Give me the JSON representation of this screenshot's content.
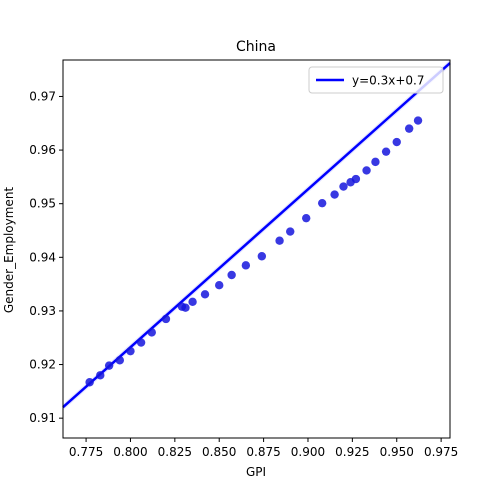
{
  "chart_data": {
    "type": "scatter",
    "title": "China",
    "xlabel": "GPI",
    "ylabel": "Gender_Employment",
    "xlim": [
      0.762,
      0.98
    ],
    "ylim": [
      0.9063,
      0.9768
    ],
    "xticks": [
      0.775,
      0.8,
      0.825,
      0.85,
      0.875,
      0.9,
      0.925,
      0.95,
      0.975
    ],
    "xtick_labels": [
      "0.775",
      "0.800",
      "0.825",
      "0.850",
      "0.875",
      "0.900",
      "0.925",
      "0.950",
      "0.975"
    ],
    "yticks": [
      0.91,
      0.92,
      0.93,
      0.94,
      0.95,
      0.96,
      0.97
    ],
    "ytick_labels": [
      "0.91",
      "0.92",
      "0.93",
      "0.94",
      "0.95",
      "0.96",
      "0.97"
    ],
    "grid": false,
    "legend": {
      "position": "upper right",
      "entries": [
        {
          "label": "y=0.3x+0.7",
          "color": "#0000ff",
          "kind": "line"
        }
      ]
    },
    "colors": {
      "points": "#1515dd",
      "line": "#0000ff",
      "band": "#9999ff"
    },
    "fit_line": {
      "slope": 0.29448,
      "intercept": 0.687648,
      "x_range": [
        0.762,
        0.98
      ]
    },
    "series": [
      {
        "kind": "points",
        "x": [
          0.777,
          0.783,
          0.788,
          0.794,
          0.8,
          0.806,
          0.812,
          0.82,
          0.829,
          0.831,
          0.835,
          0.842,
          0.85,
          0.857,
          0.865,
          0.874,
          0.884,
          0.89,
          0.899,
          0.908,
          0.915,
          0.92,
          0.924,
          0.927,
          0.933,
          0.938,
          0.944,
          0.95,
          0.957,
          0.962
        ],
        "y": [
          0.9167,
          0.918,
          0.9198,
          0.9208,
          0.9225,
          0.9241,
          0.926,
          0.9285,
          0.9308,
          0.9306,
          0.9317,
          0.9331,
          0.9348,
          0.9367,
          0.9385,
          0.9402,
          0.9431,
          0.9448,
          0.9473,
          0.9501,
          0.9517,
          0.9532,
          0.954,
          0.9546,
          0.9562,
          0.9578,
          0.9597,
          0.9615,
          0.964,
          0.9655
        ]
      }
    ]
  }
}
